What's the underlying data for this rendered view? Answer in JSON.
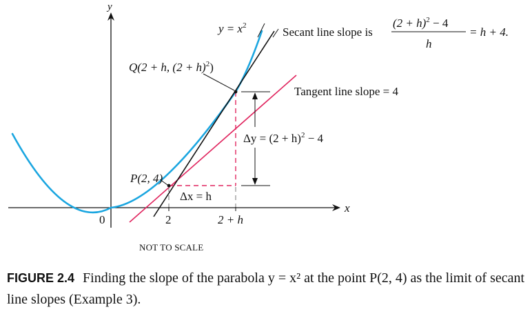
{
  "figure": {
    "axis_x_label": "x",
    "axis_y_label": "y",
    "origin_label": "0",
    "tick_2": "2",
    "tick_2h": "2 + h",
    "curve_label": "y = x",
    "curve_label_exp": "2",
    "point_q_label_pre": "Q(2 + h, (2 + h)",
    "point_q_label_post": ")",
    "point_q_exp": "2",
    "point_p_label": "P(2, 4)",
    "secant_text": "Secant line slope is",
    "secant_numerator_pre": "(2 + h)",
    "secant_numerator_post": " − 4",
    "secant_numerator_exp": "2",
    "secant_denominator": "h",
    "secant_result": "= h + 4.",
    "tangent_text": "Tangent line slope = 4",
    "delta_y_pre": "Δy = (2 + h)",
    "delta_y_post": " − 4",
    "delta_y_exp": "2",
    "delta_x": "Δx = h",
    "note": "NOT TO SCALE",
    "colors": {
      "parabola": "#1ba6e0",
      "tangent": "#e0245e",
      "secant": "#111111",
      "dashes": "#e0245e"
    }
  },
  "caption": {
    "label": "FIGURE 2.4",
    "text": "Finding the slope of the parabola y = x² at the point P(2, 4) as the limit of secant line slopes (Example 3)."
  }
}
